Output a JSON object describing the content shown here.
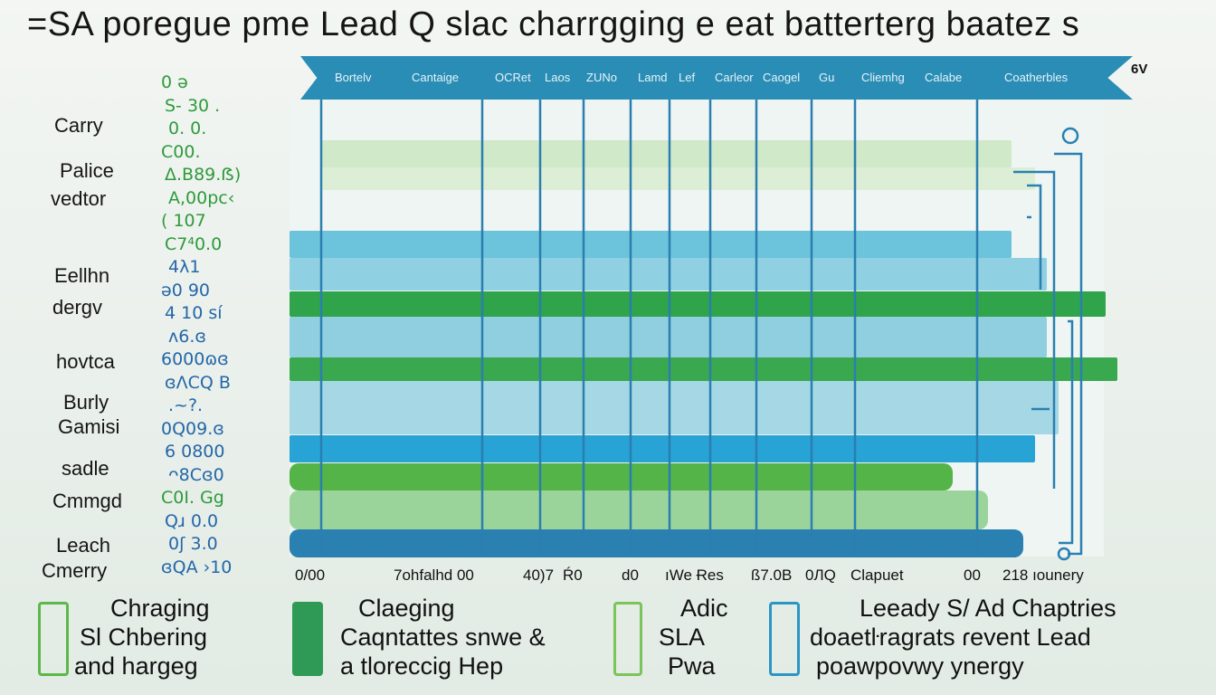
{
  "title": "=SA poregue pme Lead Q slac charrgging e eat batterterg baatez s",
  "header": {
    "categories": [
      "Bortelv",
      "Cantaige",
      "OCRet",
      "Laos",
      "ZUNo",
      "Lamd",
      "Lef",
      "Carleor",
      "Caogel",
      "Gu",
      "Cliemhg",
      "Calabe",
      "Coatherbles"
    ],
    "badge": "6V"
  },
  "row_labels": [
    "Carry",
    "Palice",
    "vedtor",
    "Eellhn",
    "dergv",
    "hovtca",
    "Burly",
    "Gamisi",
    "sadle",
    "Cmmgd",
    "Leach",
    "Cmerry"
  ],
  "numbers": [
    {
      "t": "0  ǝ",
      "c": "green"
    },
    {
      "t": "S- 30 .",
      "c": "green"
    },
    {
      "t": "0. 0.",
      "c": "green"
    },
    {
      "t": "C00.",
      "c": "green"
    },
    {
      "t": "Δ.B89.ẞ)",
      "c": "green"
    },
    {
      "t": "A,00pc‹",
      "c": "green"
    },
    {
      "t": "(  107",
      "c": "green"
    },
    {
      "t": "C7⁴0.0",
      "c": "green"
    },
    {
      "t": "4λ1",
      "c": "blue"
    },
    {
      "t": "ə0 90",
      "c": "blue"
    },
    {
      "t": "4  10 sí",
      "c": "blue"
    },
    {
      "t": "ʌ6.ɞ",
      "c": "blue"
    },
    {
      "t": "6000ɷɞ",
      "c": "blue"
    },
    {
      "t": "ɞΛCQ B",
      "c": "blue"
    },
    {
      "t": ".~?.",
      "c": "blue"
    },
    {
      "t": "0Q09.ɞ",
      "c": "blue"
    },
    {
      "t": "6  0800",
      "c": "blue"
    },
    {
      "t": "ᴖ8Cɞ0",
      "c": "blue"
    },
    {
      "t": "C0I. Gg",
      "c": "green"
    },
    {
      "t": "Qɹ  0.0",
      "c": "blue"
    },
    {
      "t": "0ʃ 3.0",
      "c": "blue"
    },
    {
      "t": "ɞQA ›10",
      "c": "blue"
    }
  ],
  "x_ticks": [
    "0/00",
    "7ohfalhd 00",
    "40)7",
    "Ŕ0",
    "d0",
    "ıWe Ɍes",
    "ß7.0B",
    "0ЛQ",
    "Clapuet",
    "00",
    "218 ıounery"
  ],
  "chart_data": {
    "type": "bar",
    "orientation": "horizontal",
    "note_scale": "percent of full width",
    "series": [
      {
        "color": "#cfe9c9",
        "value": 86
      },
      {
        "color": "#dcefd6",
        "value": 88
      },
      {
        "color": "#6cc3dc",
        "value": 86
      },
      {
        "color": "#8fd0e2",
        "value": 89
      },
      {
        "color": "#2fa44a",
        "value": 94
      },
      {
        "color": "#8fcfdf",
        "value": 89
      },
      {
        "color": "#3aa84e",
        "value": 95
      },
      {
        "color": "#a5d8e4",
        "value": 90
      },
      {
        "color": "#27a3d6",
        "value": 88
      },
      {
        "color": "#54b448",
        "value": 81
      },
      {
        "color": "#9bd49a",
        "value": 84
      },
      {
        "color": "#2a80b0",
        "value": 87
      }
    ],
    "gridlines": true
  },
  "legend": [
    {
      "icon": "battery-icon",
      "color": "#5cb848",
      "lines": [
        "Chraging",
        "Sl Chbering",
        "and hargeg"
      ]
    },
    {
      "icon": "battery-icon",
      "color": "#2e9a55",
      "lines": [
        "Claeging",
        "Caqntattes snwe &",
        "a tlorессig Hep"
      ]
    },
    {
      "icon": "battery-icon",
      "color": "#7cc35a",
      "lines": [
        "Adic",
        "SLA",
        "Pwa"
      ]
    },
    {
      "icon": "battery-icon",
      "color": "#2a96c4",
      "lines": [
        "Leeady S/ Ad  Chaptries",
        "doaetŀragrats ɾevent Lead",
        "poawpovwy  ynergy"
      ]
    }
  ]
}
